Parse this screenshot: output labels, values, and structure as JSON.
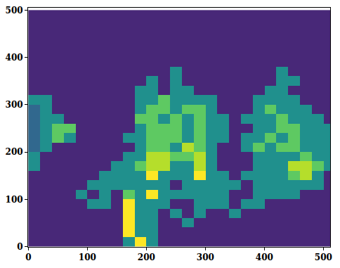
{
  "chart_data": {
    "type": "heatmap",
    "x": [
      10,
      30,
      50,
      70,
      90,
      110,
      130,
      150,
      170,
      190,
      210,
      230,
      250,
      270,
      290,
      310,
      330,
      350,
      370,
      390,
      410,
      430,
      450,
      470,
      490,
      510
    ],
    "y": [
      10,
      30,
      50,
      70,
      90,
      110,
      130,
      150,
      170,
      190,
      210,
      230,
      250,
      270,
      290,
      310,
      330,
      350,
      370,
      390,
      410,
      430,
      450,
      470,
      490
    ],
    "z": [
      [
        0,
        0,
        0,
        0,
        0,
        0,
        0,
        0,
        2,
        5,
        2,
        0,
        0,
        0,
        0,
        0,
        0,
        0,
        0,
        0,
        0,
        0,
        0,
        0,
        0,
        0
      ],
      [
        0,
        0,
        0,
        0,
        0,
        0,
        0,
        0,
        5,
        2,
        2,
        0,
        0,
        0,
        0,
        0,
        0,
        0,
        0,
        0,
        0,
        0,
        0,
        0,
        0,
        0
      ],
      [
        0,
        0,
        0,
        0,
        0,
        0,
        0,
        0,
        5,
        2,
        2,
        0,
        0,
        2,
        0,
        0,
        0,
        0,
        0,
        0,
        0,
        0,
        0,
        0,
        0,
        0
      ],
      [
        0,
        0,
        0,
        0,
        0,
        0,
        0,
        0,
        5,
        2,
        2,
        0,
        2,
        0,
        2,
        0,
        0,
        2,
        0,
        0,
        0,
        0,
        0,
        0,
        0,
        0
      ],
      [
        0,
        0,
        0,
        0,
        0,
        2,
        2,
        0,
        5,
        2,
        2,
        2,
        0,
        0,
        2,
        2,
        2,
        0,
        2,
        2,
        0,
        0,
        0,
        0,
        0,
        0
      ],
      [
        0,
        0,
        0,
        0,
        2,
        0,
        2,
        0,
        3,
        2,
        5,
        2,
        2,
        2,
        2,
        2,
        2,
        0,
        0,
        2,
        2,
        2,
        2,
        0,
        0,
        0
      ],
      [
        0,
        0,
        0,
        0,
        0,
        2,
        2,
        2,
        2,
        2,
        2,
        2,
        0,
        2,
        2,
        2,
        2,
        2,
        0,
        2,
        2,
        2,
        2,
        2,
        2,
        0
      ],
      [
        0,
        0,
        0,
        0,
        0,
        0,
        2,
        2,
        2,
        2,
        5,
        2,
        2,
        2,
        5,
        2,
        2,
        0,
        2,
        2,
        2,
        2,
        3,
        4,
        2,
        0
      ],
      [
        2,
        0,
        0,
        0,
        0,
        0,
        0,
        2,
        2,
        3,
        4,
        4,
        2,
        2,
        4,
        2,
        0,
        0,
        0,
        2,
        2,
        2,
        4,
        4,
        3,
        2
      ],
      [
        2,
        0,
        0,
        0,
        0,
        0,
        0,
        0,
        2,
        2,
        4,
        4,
        3,
        3,
        4,
        2,
        0,
        0,
        0,
        2,
        2,
        2,
        2,
        3,
        2,
        2
      ],
      [
        1,
        2,
        0,
        0,
        0,
        0,
        0,
        0,
        0,
        2,
        3,
        3,
        2,
        4,
        3,
        2,
        0,
        0,
        2,
        3,
        2,
        3,
        3,
        2,
        2,
        2
      ],
      [
        1,
        2,
        3,
        2,
        0,
        0,
        0,
        0,
        2,
        2,
        3,
        3,
        3,
        2,
        3,
        2,
        2,
        0,
        2,
        2,
        3,
        2,
        3,
        2,
        2,
        2
      ],
      [
        1,
        2,
        3,
        3,
        0,
        0,
        0,
        0,
        0,
        2,
        3,
        3,
        3,
        2,
        3,
        2,
        2,
        0,
        0,
        2,
        2,
        3,
        3,
        2,
        2,
        2
      ],
      [
        1,
        2,
        2,
        0,
        0,
        0,
        0,
        0,
        0,
        3,
        3,
        2,
        3,
        2,
        3,
        2,
        2,
        0,
        2,
        2,
        2,
        3,
        2,
        2,
        2,
        0
      ],
      [
        1,
        2,
        0,
        0,
        0,
        0,
        0,
        0,
        0,
        2,
        3,
        3,
        2,
        3,
        3,
        2,
        0,
        0,
        0,
        2,
        3,
        2,
        2,
        2,
        0,
        0
      ],
      [
        2,
        2,
        0,
        0,
        0,
        0,
        0,
        0,
        0,
        2,
        2,
        3,
        2,
        2,
        2,
        2,
        0,
        0,
        0,
        2,
        2,
        2,
        2,
        0,
        0,
        0
      ],
      [
        0,
        0,
        0,
        0,
        0,
        0,
        0,
        0,
        0,
        2,
        2,
        0,
        2,
        2,
        0,
        0,
        0,
        0,
        0,
        0,
        2,
        2,
        0,
        0,
        0,
        0
      ],
      [
        0,
        0,
        0,
        0,
        0,
        0,
        0,
        0,
        0,
        0,
        2,
        0,
        2,
        0,
        0,
        0,
        0,
        0,
        0,
        0,
        0,
        2,
        2,
        0,
        0,
        0
      ],
      [
        0,
        0,
        0,
        0,
        0,
        0,
        0,
        0,
        0,
        0,
        0,
        0,
        2,
        0,
        0,
        0,
        0,
        0,
        0,
        0,
        0,
        2,
        0,
        0,
        0,
        0
      ],
      [
        0,
        0,
        0,
        0,
        0,
        0,
        0,
        0,
        0,
        0,
        0,
        0,
        0,
        0,
        0,
        0,
        0,
        0,
        0,
        0,
        0,
        0,
        0,
        0,
        0,
        0
      ],
      [
        0,
        0,
        0,
        0,
        0,
        0,
        0,
        0,
        0,
        0,
        0,
        0,
        0,
        0,
        0,
        0,
        0,
        0,
        0,
        0,
        0,
        0,
        0,
        0,
        0,
        0
      ],
      [
        0,
        0,
        0,
        0,
        0,
        0,
        0,
        0,
        0,
        0,
        0,
        0,
        0,
        0,
        0,
        0,
        0,
        0,
        0,
        0,
        0,
        0,
        0,
        0,
        0,
        0
      ],
      [
        0,
        0,
        0,
        0,
        0,
        0,
        0,
        0,
        0,
        0,
        0,
        0,
        0,
        0,
        0,
        0,
        0,
        0,
        0,
        0,
        0,
        0,
        0,
        0,
        0,
        0
      ],
      [
        0,
        0,
        0,
        0,
        0,
        0,
        0,
        0,
        0,
        0,
        0,
        0,
        0,
        0,
        0,
        0,
        0,
        0,
        0,
        0,
        0,
        0,
        0,
        0,
        0,
        0
      ],
      [
        0,
        0,
        0,
        0,
        0,
        0,
        0,
        0,
        0,
        0,
        0,
        0,
        0,
        0,
        0,
        0,
        0,
        0,
        0,
        0,
        0,
        0,
        0,
        0,
        0,
        0
      ]
    ],
    "zlim": [
      0,
      5
    ],
    "colors": [
      "#482878",
      "#31688e",
      "#20908d",
      "#5ec962",
      "#b5de2b",
      "#fde725"
    ],
    "xlim": [
      -0.5,
      511.5
    ],
    "ylim": [
      -0.5,
      505
    ],
    "xticks": [
      0,
      100,
      200,
      300,
      400,
      500
    ],
    "yticks": [
      0,
      100,
      200,
      300,
      400,
      500
    ],
    "grid": false
  }
}
